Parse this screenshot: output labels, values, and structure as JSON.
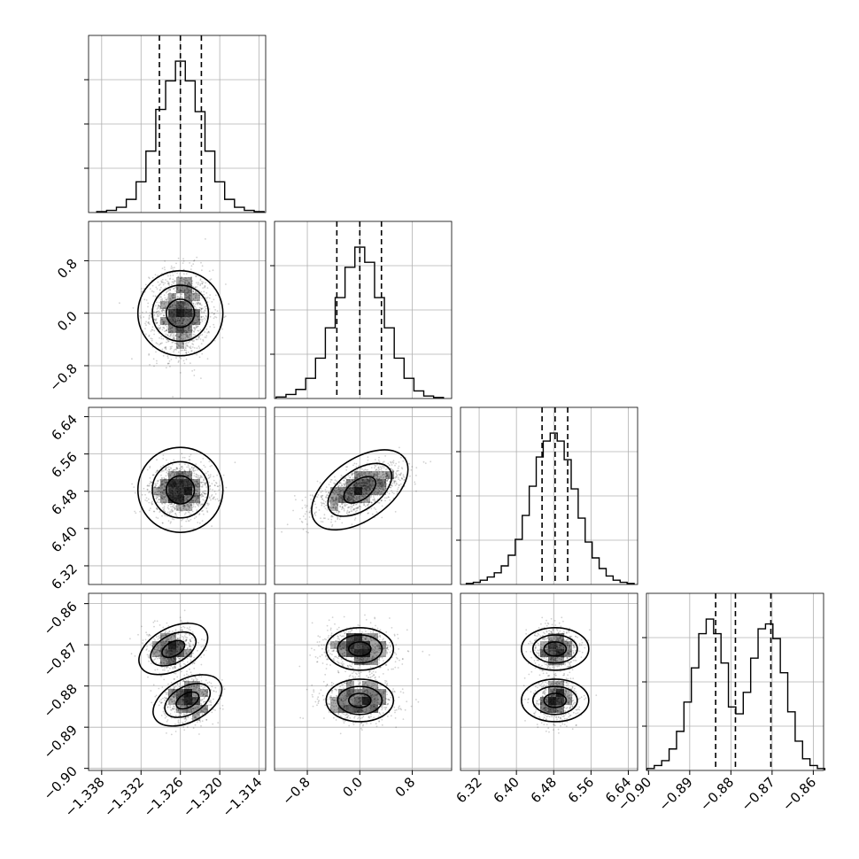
{
  "chart_data": {
    "type": "corner",
    "title": "",
    "grid": true,
    "colors": {
      "line": "#000000",
      "grid": "#b0b0b0",
      "points": "#000000",
      "density": "#000000"
    },
    "parameters": [
      {
        "index": 0,
        "range": [
          -1.34,
          -1.313
        ],
        "ticks": [
          -1.338,
          -1.332,
          -1.326,
          -1.32,
          -1.314
        ],
        "tick_labels": [
          "−1.338",
          "−1.332",
          "−1.326",
          "−1.320",
          "−1.314"
        ],
        "quantiles": [
          -1.3292,
          -1.326,
          -1.3228
        ],
        "mean": -1.326,
        "sd": 0.0023
      },
      {
        "index": 1,
        "range": [
          -1.3,
          1.4
        ],
        "ticks": [
          -0.8,
          0.0,
          0.8
        ],
        "tick_labels": [
          "−0.8",
          "0.0",
          "0.8"
        ],
        "quantiles": [
          -0.35,
          0.0,
          0.33
        ],
        "mean": 0.0,
        "sd": 0.33
      },
      {
        "index": 2,
        "range": [
          6.28,
          6.66
        ],
        "ticks": [
          6.32,
          6.4,
          6.48,
          6.56,
          6.64
        ],
        "tick_labels": [
          "6.32",
          "6.40",
          "6.48",
          "6.56",
          "6.64"
        ],
        "quantiles": [
          6.455,
          6.483,
          6.51
        ],
        "mean": 6.483,
        "sd": 0.027
      },
      {
        "index": 3,
        "range": [
          -0.9005,
          -0.8575
        ],
        "ticks": [
          -0.9,
          -0.89,
          -0.88,
          -0.87,
          -0.86
        ],
        "tick_labels": [
          "−0.90",
          "−0.89",
          "−0.88",
          "−0.87",
          "−0.86"
        ],
        "quantiles": [
          -0.8837,
          -0.8789,
          -0.8703
        ],
        "modes": [
          -0.8835,
          -0.871
        ]
      }
    ],
    "histograms": [
      {
        "param": 0,
        "x": [
          -1.338,
          -1.3365,
          -1.335,
          -1.3335,
          -1.332,
          -1.3305,
          -1.329,
          -1.3275,
          -1.326,
          -1.3245,
          -1.323,
          -1.3215,
          -1.32,
          -1.3185,
          -1.317,
          -1.3155,
          -1.314
        ],
        "y": [
          2,
          5,
          12,
          30,
          70,
          140,
          235,
          300,
          345,
          300,
          230,
          140,
          70,
          30,
          12,
          5,
          2
        ]
      },
      {
        "param": 1,
        "x": [
          -1.2,
          -1.05,
          -0.9,
          -0.75,
          -0.6,
          -0.45,
          -0.3,
          -0.15,
          0.0,
          0.15,
          0.3,
          0.45,
          0.6,
          0.75,
          0.9,
          1.05,
          1.2
        ],
        "y": [
          3,
          8,
          18,
          40,
          80,
          140,
          200,
          260,
          300,
          270,
          200,
          140,
          80,
          40,
          15,
          5,
          2
        ]
      },
      {
        "param": 2,
        "x": [
          6.3,
          6.315,
          6.33,
          6.345,
          6.36,
          6.375,
          6.39,
          6.405,
          6.42,
          6.435,
          6.45,
          6.465,
          6.48,
          6.495,
          6.51,
          6.525,
          6.54,
          6.555,
          6.57,
          6.585,
          6.6,
          6.615,
          6.63,
          6.645
        ],
        "y": [
          2,
          4,
          8,
          14,
          22,
          35,
          55,
          85,
          130,
          185,
          240,
          270,
          285,
          270,
          235,
          180,
          125,
          80,
          50,
          30,
          16,
          8,
          4,
          2
        ]
      },
      {
        "param": 3,
        "x": [
          -0.8995,
          -0.8977,
          -0.8959,
          -0.8941,
          -0.8923,
          -0.8905,
          -0.8887,
          -0.8869,
          -0.8851,
          -0.8833,
          -0.8815,
          -0.8797,
          -0.8779,
          -0.8761,
          -0.8743,
          -0.8725,
          -0.8707,
          -0.8689,
          -0.8671,
          -0.8653,
          -0.8635,
          -0.8617,
          -0.8599,
          -0.8581
        ],
        "y": [
          2,
          5,
          10,
          22,
          40,
          70,
          105,
          140,
          155,
          140,
          110,
          65,
          58,
          80,
          115,
          145,
          150,
          135,
          100,
          60,
          30,
          12,
          5,
          2
        ]
      }
    ],
    "scatter_panels": [
      {
        "row": 1,
        "col": 0,
        "x_param": 0,
        "y_param": 1,
        "correlation": 0.0
      },
      {
        "row": 2,
        "col": 0,
        "x_param": 0,
        "y_param": 2,
        "correlation": 0.0
      },
      {
        "row": 2,
        "col": 1,
        "x_param": 1,
        "y_param": 2,
        "correlation": 0.6
      },
      {
        "row": 3,
        "col": 0,
        "x_param": 0,
        "y_param": 3,
        "correlation": 0.55
      },
      {
        "row": 3,
        "col": 1,
        "x_param": 1,
        "y_param": 3,
        "correlation": 0.0
      },
      {
        "row": 3,
        "col": 2,
        "x_param": 2,
        "y_param": 3,
        "correlation": 0.0
      }
    ]
  }
}
